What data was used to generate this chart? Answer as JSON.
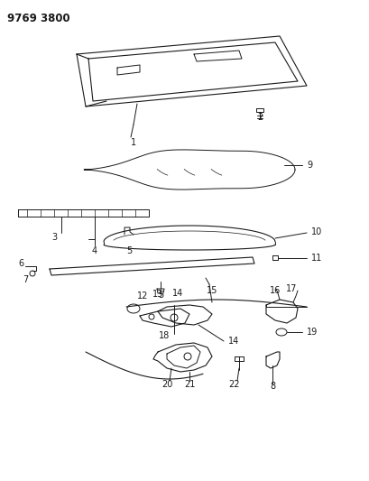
{
  "title": "9769 3800",
  "bg_color": "#ffffff",
  "line_color": "#1a1a1a",
  "title_fontsize": 8.5,
  "label_fontsize": 7,
  "figsize": [
    4.1,
    5.33
  ],
  "dpi": 100
}
